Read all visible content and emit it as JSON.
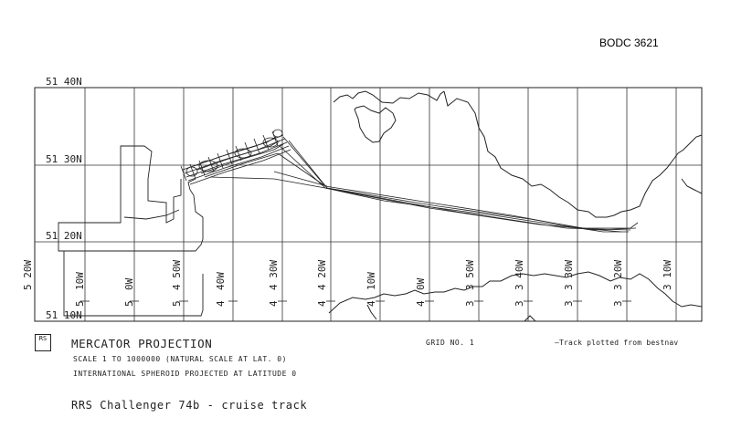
{
  "document_id": "BODC 3621",
  "map": {
    "lat_labels": [
      {
        "text": "51 40N"
      },
      {
        "text": "51 30N"
      },
      {
        "text": "51 20N"
      },
      {
        "text": "51 10N"
      }
    ],
    "lon_labels_top": [
      "5 20W",
      "10W",
      "0W",
      "4 50W",
      "40W",
      "4 30W",
      "4 20W",
      "10W",
      "0W",
      "3 50W",
      "3 40W",
      "3 30W",
      "3 20W",
      "3 10W"
    ],
    "lon_labels_bottom": [
      "5",
      "5",
      "5",
      "4",
      "4",
      "4",
      "4",
      "4",
      "3",
      "3",
      "3",
      "3"
    ],
    "logo_text": "RS"
  },
  "footer": {
    "projection_title": "MERCATOR PROJECTION",
    "scale_text": "SCALE  1  TO  1000000 (NATURAL SCALE AT LAT. 0)",
    "spheroid_text": "INTERNATIONAL SPHEROID PROJECTED AT LATITUDE 0",
    "grid_label": "GRID NO.   1",
    "track_note": "—Track plotted from bestnav",
    "caption": "RRS Challenger 74b - cruise track"
  }
}
